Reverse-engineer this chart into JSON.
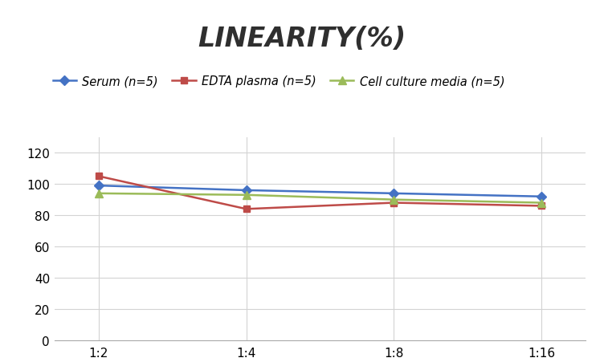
{
  "title": "LINEARITY(%)",
  "x_labels": [
    "1:2",
    "1:4",
    "1:8",
    "1:16"
  ],
  "x_positions": [
    0,
    1,
    2,
    3
  ],
  "series": [
    {
      "label": "Serum (n=5)",
      "values": [
        99,
        96,
        94,
        92
      ],
      "color": "#4472C4",
      "marker": "D",
      "marker_size": 6,
      "linewidth": 1.8
    },
    {
      "label": "EDTA plasma (n=5)",
      "values": [
        105,
        84,
        88,
        86
      ],
      "color": "#BE4B48",
      "marker": "s",
      "marker_size": 6,
      "linewidth": 1.8
    },
    {
      "label": "Cell culture media (n=5)",
      "values": [
        94,
        93,
        90,
        88
      ],
      "color": "#9BBB59",
      "marker": "^",
      "marker_size": 7,
      "linewidth": 1.8
    }
  ],
  "ylim": [
    0,
    130
  ],
  "yticks": [
    0,
    20,
    40,
    60,
    80,
    100,
    120
  ],
  "background_color": "#FFFFFF",
  "grid_color": "#D3D3D3",
  "title_fontsize": 24,
  "legend_fontsize": 10.5,
  "tick_fontsize": 11
}
